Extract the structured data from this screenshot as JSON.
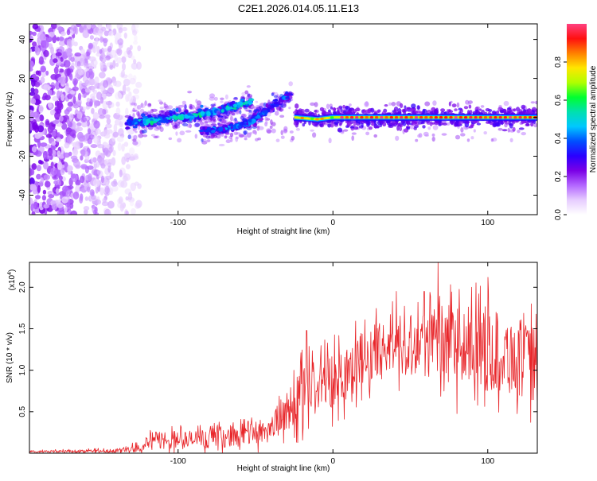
{
  "title": "C2E1.2026.014.05.11.E13",
  "chart_data": [
    {
      "type": "heatmap",
      "name": "spectrogram",
      "xlabel": "Height of straight line (km)",
      "ylabel": "Frequency (Hz)",
      "xlim": [
        -196,
        132
      ],
      "ylim": [
        -50,
        48
      ],
      "xticks": [
        -100,
        0,
        100
      ],
      "xtick_labels": [
        "-100",
        "0",
        "100"
      ],
      "yticks": [
        -40,
        -20,
        0,
        20,
        40
      ],
      "ytick_labels": [
        "-40",
        "-20",
        "0",
        "20",
        "40"
      ],
      "colorbar": {
        "label": "Normalized spectral amplitude",
        "range": [
          0,
          1
        ],
        "ticks": [
          0,
          0.2,
          0.4,
          0.6,
          0.8
        ],
        "tick_labels": [
          "0.0",
          "0.2",
          "0.4",
          "0.6",
          "0.8"
        ],
        "colormap": [
          "#ffffff",
          "#e6ccff",
          "#b366ff",
          "#7a00e6",
          "#2a00ff",
          "#0050ff",
          "#00c8ff",
          "#00e0b0",
          "#00ff30",
          "#b0ff00",
          "#ffe600",
          "#ff8000",
          "#ff1010",
          "#ff4080"
        ]
      },
      "features": [
        {
          "name": "low-altitude noise band",
          "x_range": [
            -196,
            -125
          ],
          "y_range": [
            -50,
            48
          ],
          "amplitude": 0.1
        },
        {
          "name": "ascending branch A",
          "points": [
            [
              -133,
              -3
            ],
            [
              -110,
              -1
            ],
            [
              -90,
              1
            ],
            [
              -75,
              3
            ],
            [
              -60,
              6
            ],
            [
              -52,
              8
            ]
          ],
          "amplitude": 0.45
        },
        {
          "name": "ascending branch B",
          "points": [
            [
              -85,
              -7
            ],
            [
              -70,
              -6
            ],
            [
              -55,
              -3
            ],
            [
              -45,
              2
            ],
            [
              -35,
              8
            ],
            [
              -27,
              12
            ]
          ],
          "amplitude": 0.35
        },
        {
          "name": "stable carrier",
          "points": [
            [
              -25,
              0
            ],
            [
              -10,
              -1
            ],
            [
              0,
              0
            ],
            [
              30,
              0
            ],
            [
              60,
              0
            ],
            [
              90,
              0
            ],
            [
              132,
              0
            ]
          ],
          "amplitude": 0.9
        }
      ]
    },
    {
      "type": "line",
      "name": "snr",
      "xlabel": "Height of straight line (km)",
      "ylabel": "SNR (10 * v/v)",
      "yscale_label": "(x10",
      "yscale_exponent": "4",
      "yscale_close": ")",
      "xlim": [
        -196,
        132
      ],
      "ylim": [
        0,
        2.3
      ],
      "xticks": [
        -100,
        0,
        100
      ],
      "xtick_labels": [
        "-100",
        "0",
        "100"
      ],
      "yticks": [
        0.5,
        1.0,
        1.5,
        2.0
      ],
      "ytick_labels": [
        "0.5",
        "1.0",
        "1.5",
        "2.0"
      ],
      "color": "#e8262a",
      "envelope": [
        {
          "x": -196,
          "mean": 0.02,
          "spread": 0.01
        },
        {
          "x": -140,
          "mean": 0.03,
          "spread": 0.02
        },
        {
          "x": -125,
          "mean": 0.07,
          "spread": 0.05
        },
        {
          "x": -115,
          "mean": 0.16,
          "spread": 0.1
        },
        {
          "x": -90,
          "mean": 0.16,
          "spread": 0.1
        },
        {
          "x": -60,
          "mean": 0.22,
          "spread": 0.12
        },
        {
          "x": -40,
          "mean": 0.3,
          "spread": 0.15
        },
        {
          "x": -30,
          "mean": 0.5,
          "spread": 0.22
        },
        {
          "x": -20,
          "mean": 0.72,
          "spread": 0.3
        },
        {
          "x": -10,
          "mean": 0.8,
          "spread": 0.3
        },
        {
          "x": 5,
          "mean": 0.95,
          "spread": 0.3
        },
        {
          "x": 20,
          "mean": 1.15,
          "spread": 0.3
        },
        {
          "x": 40,
          "mean": 1.3,
          "spread": 0.3
        },
        {
          "x": 60,
          "mean": 1.35,
          "spread": 0.38
        },
        {
          "x": 80,
          "mean": 1.3,
          "spread": 0.42
        },
        {
          "x": 100,
          "mean": 1.25,
          "spread": 0.45
        },
        {
          "x": 120,
          "mean": 1.15,
          "spread": 0.42
        },
        {
          "x": 132,
          "mean": 1.05,
          "spread": 0.38
        }
      ],
      "peaks": [
        {
          "x": -17,
          "y": 1.48
        },
        {
          "x": 41,
          "y": 1.95
        },
        {
          "x": 59,
          "y": 1.95
        },
        {
          "x": 68,
          "y": 2.3
        },
        {
          "x": 100,
          "y": 2.12
        },
        {
          "x": 128,
          "y": 1.8
        }
      ]
    }
  ]
}
